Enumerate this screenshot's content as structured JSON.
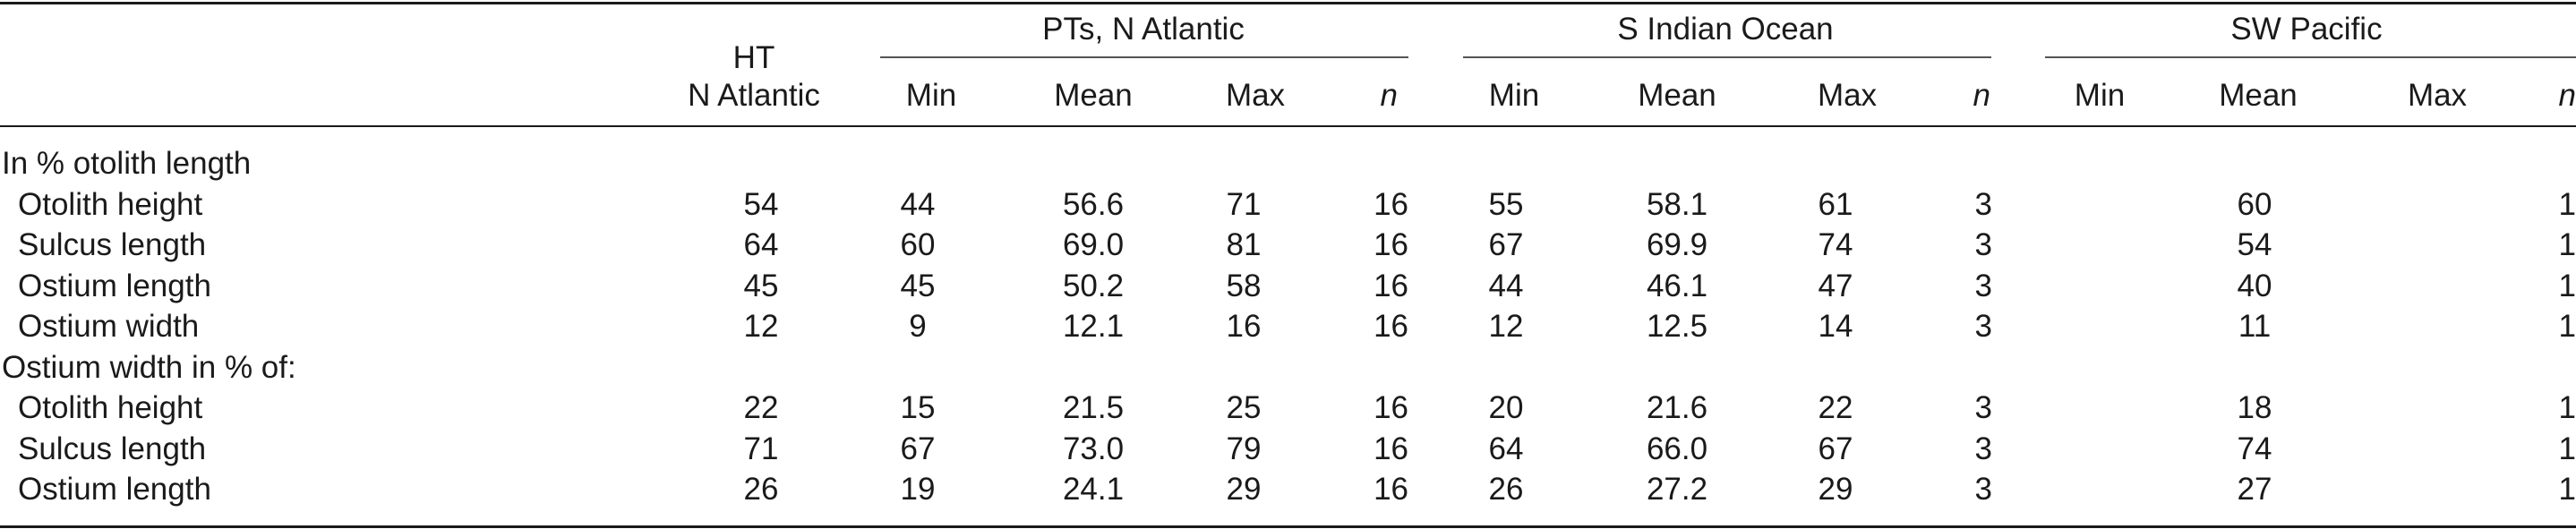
{
  "header": {
    "ht_line1": "HT",
    "ht_line2": "N Atlantic",
    "groups": [
      "PTs, N Atlantic",
      "S Indian Ocean",
      "SW Pacific"
    ],
    "sub_columns": [
      "Min",
      "Mean",
      "Max",
      "n"
    ]
  },
  "sections": [
    {
      "label": "In % otolith length",
      "rows": [
        {
          "label": "Otolith height",
          "ht": "54",
          "pts": [
            "44",
            "56.6",
            "71",
            "16"
          ],
          "sio": [
            "55",
            "58.1",
            "61",
            "3"
          ],
          "swp": [
            "",
            "60",
            "",
            "1"
          ]
        },
        {
          "label": "Sulcus length",
          "ht": "64",
          "pts": [
            "60",
            "69.0",
            "81",
            "16"
          ],
          "sio": [
            "67",
            "69.9",
            "74",
            "3"
          ],
          "swp": [
            "",
            "54",
            "",
            "1"
          ]
        },
        {
          "label": "Ostium length",
          "ht": "45",
          "pts": [
            "45",
            "50.2",
            "58",
            "16"
          ],
          "sio": [
            "44",
            "46.1",
            "47",
            "3"
          ],
          "swp": [
            "",
            "40",
            "",
            "1"
          ]
        },
        {
          "label": "Ostium width",
          "ht": "12",
          "pts": [
            "9",
            "12.1",
            "16",
            "16"
          ],
          "sio": [
            "12",
            "12.5",
            "14",
            "3"
          ],
          "swp": [
            "",
            "11",
            "",
            "1"
          ]
        }
      ]
    },
    {
      "label": "Ostium width in % of:",
      "rows": [
        {
          "label": "Otolith height",
          "ht": "22",
          "pts": [
            "15",
            "21.5",
            "25",
            "16"
          ],
          "sio": [
            "20",
            "21.6",
            "22",
            "3"
          ],
          "swp": [
            "",
            "18",
            "",
            "1"
          ]
        },
        {
          "label": "Sulcus length",
          "ht": "71",
          "pts": [
            "67",
            "73.0",
            "79",
            "16"
          ],
          "sio": [
            "64",
            "66.0",
            "67",
            "3"
          ],
          "swp": [
            "",
            "74",
            "",
            "1"
          ]
        },
        {
          "label": "Ostium length",
          "ht": "26",
          "pts": [
            "19",
            "24.1",
            "29",
            "16"
          ],
          "sio": [
            "26",
            "27.2",
            "29",
            "3"
          ],
          "swp": [
            "",
            "27",
            "",
            "1"
          ]
        }
      ]
    }
  ]
}
